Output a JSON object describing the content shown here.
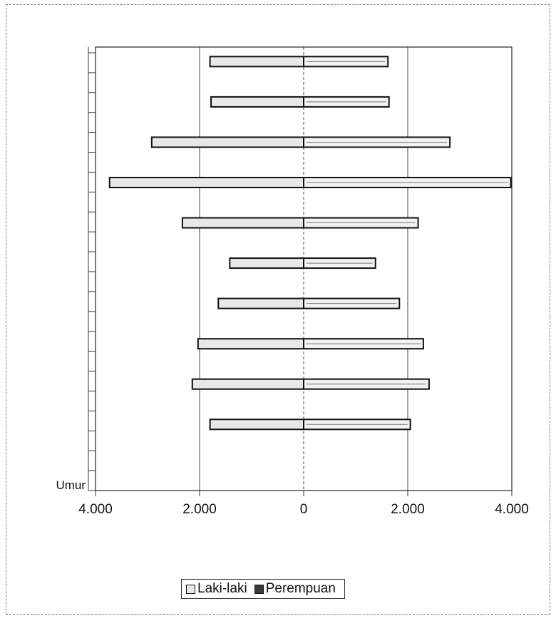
{
  "chart_data": {
    "type": "bar",
    "orientation": "horizontal",
    "subtype": "population-pyramid",
    "ylabel": "Umur",
    "categories": [
      "",
      "",
      "",
      "",
      "",
      "",
      "",
      "",
      "",
      ""
    ],
    "series": [
      {
        "name": "Laki-laki",
        "side": "left",
        "values": [
          1800,
          1780,
          2920,
          3730,
          2330,
          1420,
          1640,
          2030,
          2140,
          1800
        ]
      },
      {
        "name": "Perempuan",
        "side": "right",
        "values": [
          1620,
          1640,
          2810,
          3980,
          2200,
          1380,
          1840,
          2300,
          2410,
          2050
        ]
      }
    ],
    "xticks": [
      "4.000",
      "2.000",
      "0",
      "2.000",
      "4.000"
    ],
    "xlim": [
      -4000,
      4000
    ],
    "grid": true,
    "legend": "bottom",
    "colors": {
      "male_fill": "#e8e8e8",
      "female_fill": "#3a3a3a",
      "bar_stroke": "#111111"
    }
  }
}
